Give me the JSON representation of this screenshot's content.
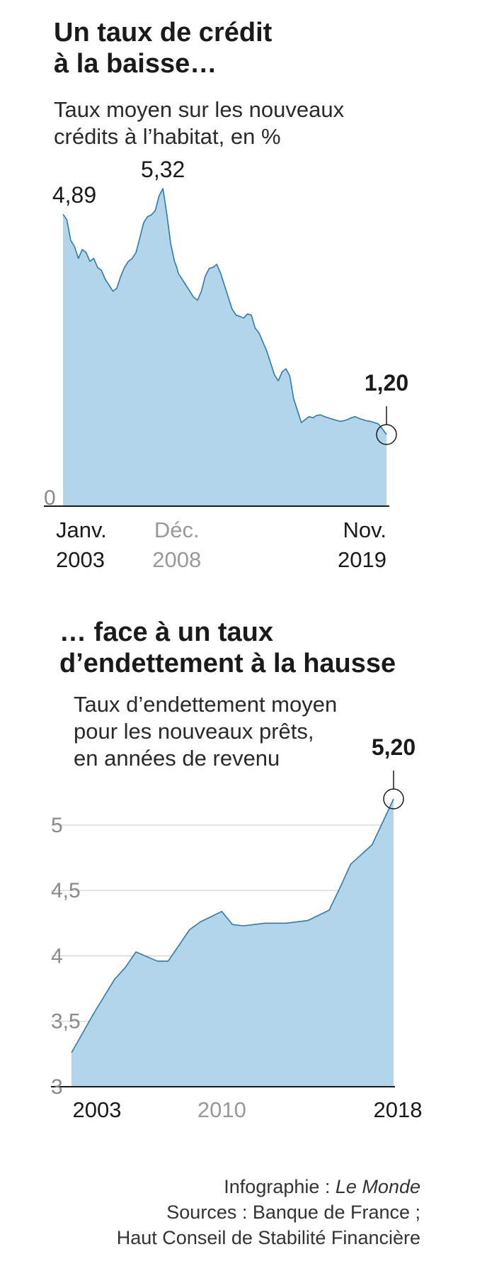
{
  "credits": {
    "line1_prefix": "Infographie : ",
    "line1_brand": "Le Monde",
    "line2": "Sources : Banque de France ;",
    "line3": "Haut Conseil de Stabilité Financière"
  },
  "colors": {
    "area_fill": "#b2d5ea",
    "line": "#2a7cb2",
    "axis": "#1a1a1a",
    "grid": "#c8c8c8",
    "muted_text": "#999999",
    "text": "#1a1a1a"
  },
  "chart_data": [
    {
      "type": "area",
      "title_lines": [
        "Un taux de crédit",
        "à la baisse…"
      ],
      "subtitle_lines": [
        "Taux moyen sur les nouveaux",
        "crédits à l’habitat, en %"
      ],
      "x": [
        2003.0,
        2003.2,
        2003.4,
        2003.6,
        2003.8,
        2004.0,
        2004.2,
        2004.4,
        2004.6,
        2004.8,
        2005.0,
        2005.2,
        2005.4,
        2005.6,
        2005.8,
        2006.0,
        2006.2,
        2006.4,
        2006.6,
        2006.8,
        2007.0,
        2007.2,
        2007.4,
        2007.6,
        2007.8,
        2008.0,
        2008.2,
        2008.4,
        2008.6,
        2008.8,
        2008.92,
        2009.0,
        2009.2,
        2009.4,
        2009.6,
        2009.8,
        2010.0,
        2010.2,
        2010.4,
        2010.6,
        2010.8,
        2011.0,
        2011.2,
        2011.4,
        2011.6,
        2011.8,
        2012.0,
        2012.2,
        2012.4,
        2012.6,
        2012.8,
        2013.0,
        2013.2,
        2013.4,
        2013.6,
        2013.8,
        2014.0,
        2014.2,
        2014.4,
        2014.6,
        2014.8,
        2015.0,
        2015.2,
        2015.4,
        2015.6,
        2015.8,
        2016.0,
        2016.2,
        2016.4,
        2016.6,
        2016.8,
        2017.0,
        2017.2,
        2017.4,
        2017.6,
        2017.8,
        2018.0,
        2018.2,
        2018.4,
        2018.6,
        2018.8,
        2019.0,
        2019.2,
        2019.4,
        2019.6,
        2019.83
      ],
      "values": [
        4.89,
        4.8,
        4.45,
        4.35,
        4.15,
        4.3,
        4.25,
        4.1,
        4.15,
        4.0,
        3.95,
        3.8,
        3.7,
        3.6,
        3.65,
        3.85,
        4.0,
        4.1,
        4.15,
        4.25,
        4.5,
        4.75,
        4.85,
        4.88,
        4.95,
        5.2,
        5.32,
        4.9,
        4.4,
        4.1,
        4.0,
        3.9,
        3.8,
        3.7,
        3.6,
        3.5,
        3.45,
        3.6,
        3.85,
        3.98,
        4.0,
        4.05,
        3.9,
        3.7,
        3.5,
        3.3,
        3.2,
        3.18,
        3.15,
        3.22,
        3.2,
        2.98,
        2.9,
        2.75,
        2.6,
        2.4,
        2.2,
        2.1,
        2.25,
        2.3,
        2.18,
        1.8,
        1.6,
        1.4,
        1.45,
        1.5,
        1.48,
        1.52,
        1.53,
        1.5,
        1.48,
        1.46,
        1.44,
        1.42,
        1.43,
        1.45,
        1.48,
        1.5,
        1.47,
        1.45,
        1.43,
        1.42,
        1.4,
        1.38,
        1.3,
        1.2
      ],
      "ylim": [
        0,
        5.32
      ],
      "y_ticks": [
        {
          "value": 0,
          "label": "0"
        }
      ],
      "x_ticks": [
        {
          "value": 2003.0,
          "line1": "Janv.",
          "line2": "2003",
          "muted": false,
          "anchor": "start"
        },
        {
          "value": 2008.92,
          "line1": "Déc.",
          "line2": "2008",
          "muted": true,
          "anchor": "middle"
        },
        {
          "value": 2019.83,
          "line1": "Nov.",
          "line2": "2019",
          "muted": false,
          "anchor": "end"
        }
      ],
      "annotations": [
        {
          "x": 2003.0,
          "y": 4.89,
          "label": "4,89",
          "bold": false,
          "style": "label"
        },
        {
          "x": 2008.2,
          "y": 5.32,
          "label": "5,32",
          "bold": false,
          "style": "label"
        },
        {
          "x": 2019.83,
          "y": 1.2,
          "label": "1,20",
          "bold": true,
          "style": "circle"
        }
      ]
    },
    {
      "type": "area",
      "title_lines": [
        "… face à un taux",
        "d’endettement à la hausse"
      ],
      "subtitle_lines": [
        "Taux d’endettement moyen",
        "pour les nouveaux prêts,",
        "en années de revenu"
      ],
      "x": [
        2003.0,
        2004.0,
        2005.0,
        2005.5,
        2006.0,
        2007.0,
        2007.5,
        2008.0,
        2008.5,
        2009.0,
        2010.0,
        2010.5,
        2011.0,
        2011.5,
        2012.0,
        2013.0,
        2014.0,
        2015.0,
        2015.5,
        2016.0,
        2017.0,
        2018.0
      ],
      "values": [
        3.26,
        3.55,
        3.82,
        3.91,
        4.03,
        3.96,
        3.96,
        4.08,
        4.2,
        4.26,
        4.34,
        4.24,
        4.23,
        4.24,
        4.25,
        4.25,
        4.27,
        4.35,
        4.52,
        4.7,
        4.85,
        5.2
      ],
      "ylim": [
        3,
        5.2
      ],
      "y_ticks": [
        {
          "value": 3,
          "label": "3"
        },
        {
          "value": 3.5,
          "label": "3,5"
        },
        {
          "value": 4,
          "label": "4"
        },
        {
          "value": 4.5,
          "label": "4,5"
        },
        {
          "value": 5,
          "label": "5"
        }
      ],
      "x_ticks": [
        {
          "value": 2003.0,
          "line2": "2003",
          "muted": false,
          "anchor": "middle"
        },
        {
          "value": 2010.0,
          "line2": "2010",
          "muted": true,
          "anchor": "middle"
        },
        {
          "value": 2018.0,
          "line2": "2018",
          "muted": false,
          "anchor": "middle"
        }
      ],
      "annotations": [
        {
          "x": 2018.0,
          "y": 5.2,
          "label": "5,20",
          "bold": true,
          "style": "circle"
        }
      ]
    }
  ]
}
